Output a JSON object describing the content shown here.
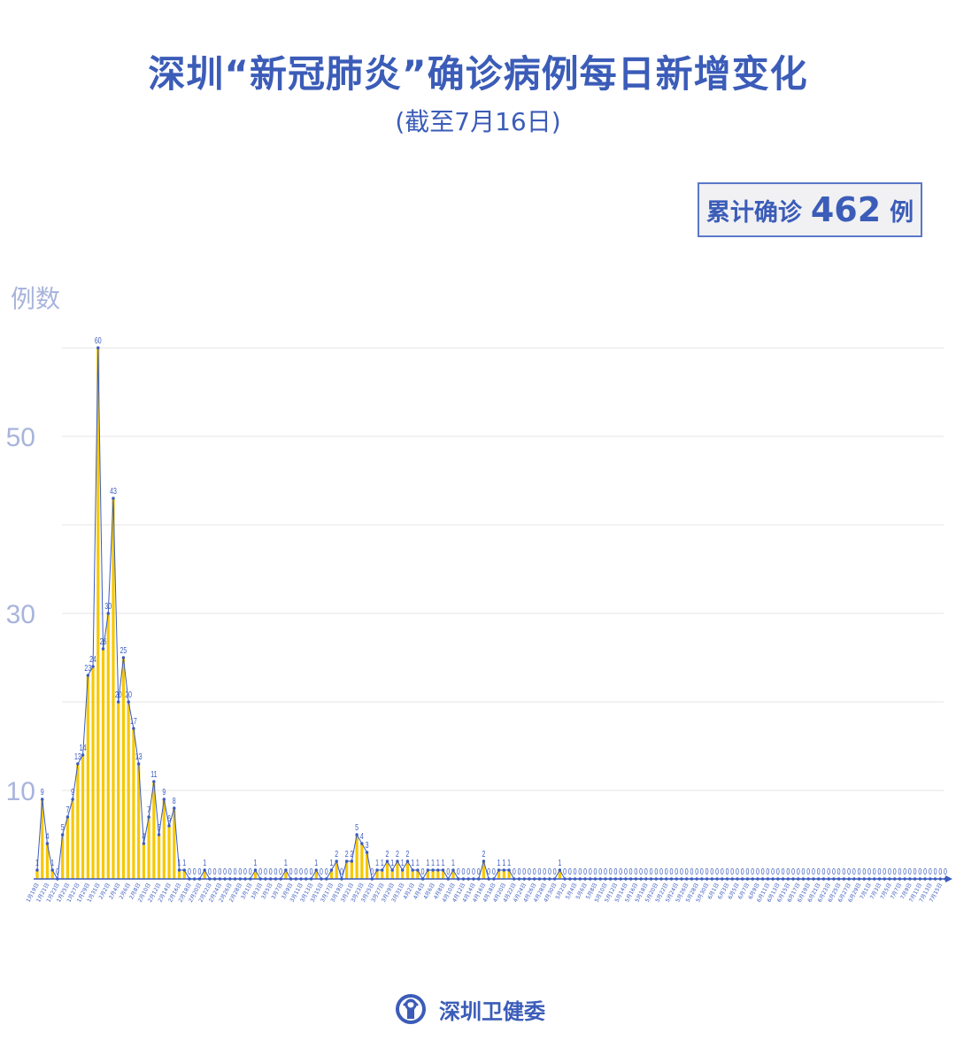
{
  "title": "深圳“新冠肺炎”确诊病例每日新增变化",
  "subtitle": "(截至7月16日)",
  "total_badge": {
    "label": "累计确诊",
    "value": "462",
    "unit": "例"
  },
  "footer": {
    "org": "深圳卫健委",
    "logo_icon": "health-commission-emblem"
  },
  "colors": {
    "accent": "#3b5cb8",
    "bar": "#f7c800",
    "line": "#3a5bbf",
    "axis_label": "#a8b4dc",
    "grid": "#e4e4e4"
  },
  "chart_data": {
    "type": "bar",
    "title": "深圳“新冠肺炎”确诊病例每日新增变化",
    "ylabel": "例数",
    "xlabel": "",
    "ylim": [
      0,
      60
    ],
    "yticks": [
      10,
      30,
      50
    ],
    "grid": true,
    "start_date": "1月19日",
    "end_date": "7月16日",
    "values": [
      1,
      9,
      4,
      1,
      0,
      5,
      7,
      9,
      13,
      14,
      23,
      24,
      60,
      26,
      30,
      43,
      20,
      25,
      20,
      17,
      13,
      4,
      7,
      11,
      5,
      9,
      6,
      8,
      1,
      1,
      0,
      0,
      0,
      1,
      0,
      0,
      0,
      0,
      0,
      0,
      0,
      0,
      0,
      1,
      0,
      0,
      0,
      0,
      0,
      1,
      0,
      0,
      0,
      0,
      0,
      1,
      0,
      0,
      1,
      2,
      0,
      2,
      2,
      5,
      4,
      3,
      0,
      1,
      1,
      2,
      1,
      2,
      1,
      2,
      1,
      1,
      0,
      1,
      1,
      1,
      1,
      0,
      1,
      0,
      0,
      0,
      0,
      0,
      2,
      0,
      0,
      1,
      1,
      1,
      0,
      0,
      0,
      0,
      0,
      0,
      0,
      0,
      0,
      1,
      0,
      0,
      0,
      0,
      0,
      0,
      0,
      0,
      0,
      0,
      0,
      0,
      0,
      0,
      0,
      0,
      0,
      0,
      0,
      0,
      0,
      0,
      0,
      0,
      0,
      0,
      0,
      0,
      0,
      0,
      0,
      0,
      0,
      0,
      0,
      0,
      0,
      0,
      0,
      0,
      0,
      0,
      0,
      0,
      0,
      0,
      0,
      0,
      0,
      0,
      0,
      0,
      0,
      0,
      0,
      0,
      0,
      0,
      0,
      0,
      0,
      0,
      0,
      0,
      0,
      0,
      0,
      0,
      0,
      0,
      0,
      0,
      0,
      0,
      0,
      0
    ]
  }
}
